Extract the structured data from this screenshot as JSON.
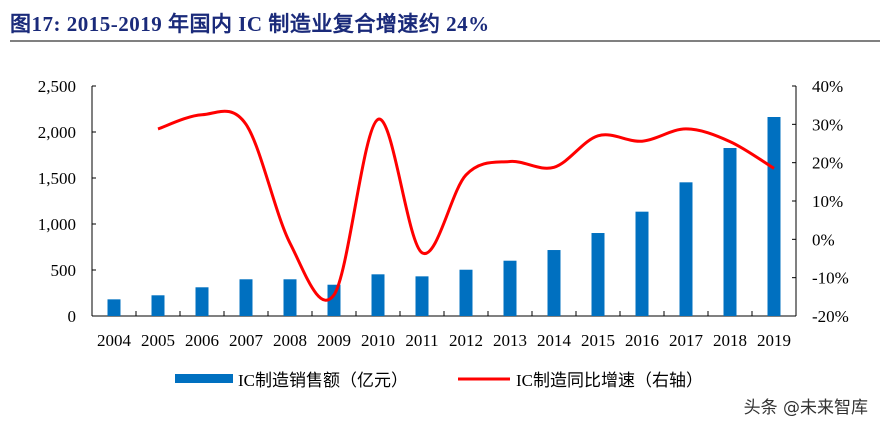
{
  "title": "图17:  2015-2019 年国内 IC 制造业复合增速约 24%",
  "watermark": "头条 @未来智库",
  "chart_data": {
    "type": "bar+line",
    "title": "图17:  2015-2019 年国内 IC 制造业复合增速约 24%",
    "categories": [
      "2004",
      "2005",
      "2006",
      "2007",
      "2008",
      "2009",
      "2010",
      "2011",
      "2012",
      "2013",
      "2014",
      "2015",
      "2016",
      "2017",
      "2018",
      "2019"
    ],
    "series": [
      {
        "name": "IC制造销售额（亿元）",
        "type": "bar",
        "axis": "left",
        "color": "#0070c0",
        "values": [
          181,
          225,
          312,
          399,
          399,
          340,
          453,
          431,
          503,
          601,
          717,
          902,
          1134,
          1453,
          1826,
          2163
        ]
      },
      {
        "name": "IC制造同比增速（右轴）",
        "type": "line",
        "axis": "right",
        "color": "#ff0000",
        "values": [
          null,
          28.8,
          32.5,
          30.0,
          -1.0,
          -14.5,
          31.3,
          -3.5,
          16.8,
          20.3,
          18.8,
          27.0,
          25.6,
          28.8,
          25.5,
          18.5
        ]
      }
    ],
    "ylim": [
      0,
      2500
    ],
    "yticks": [
      "0",
      "500",
      "1,000",
      "1,500",
      "2,000",
      "2,500"
    ],
    "y2lim": [
      -20,
      40
    ],
    "y2ticks": [
      "-20%",
      "-10%",
      "0%",
      "10%",
      "20%",
      "30%",
      "40%"
    ],
    "grid": false,
    "legend": "bottom"
  }
}
